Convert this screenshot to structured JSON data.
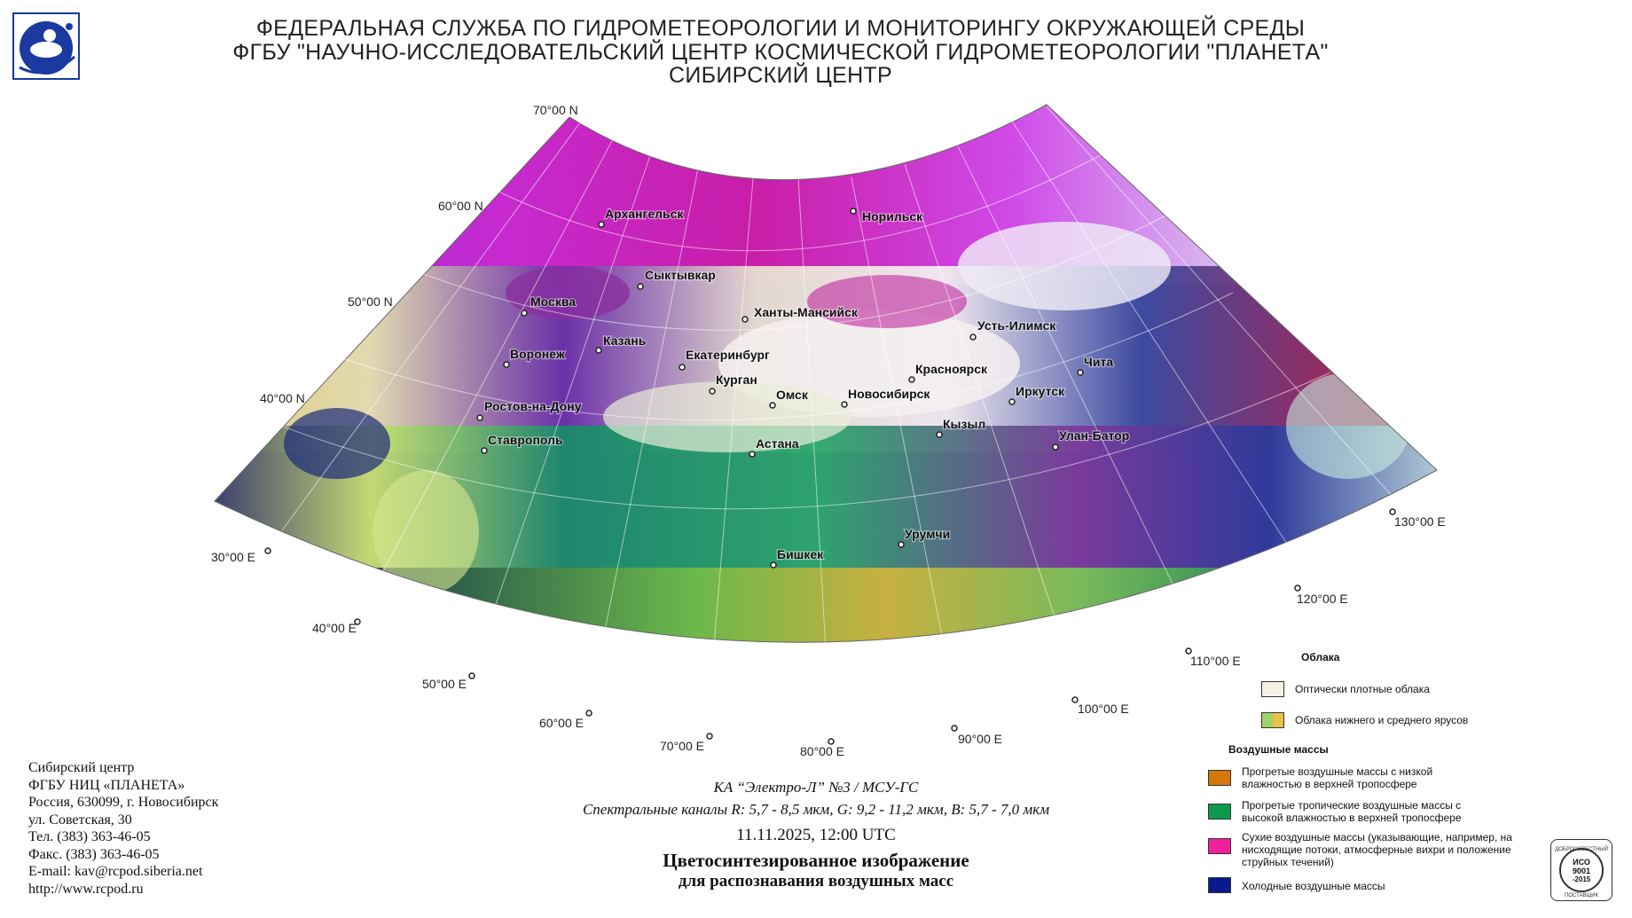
{
  "header": {
    "line1": "ФЕДЕРАЛЬНАЯ СЛУЖБА ПО ГИДРОМЕТЕОРОЛОГИИ И МОНИТОРИНГУ ОКРУЖАЮЩЕЙ СРЕДЫ",
    "line2": "ФГБУ \"НАУЧНО-ИССЛЕДОВАТЕЛЬСКИЙ ЦЕНТР КОСМИЧЕСКОЙ ГИДРОМЕТЕОРОЛОГИИ \"ПЛАНЕТА\"",
    "line3": "СИБИРСКИЙ ЦЕНТР"
  },
  "map": {
    "latitudes": [
      "70°00 N",
      "60°00 N",
      "50°00 N",
      "40°00 N"
    ],
    "longitudes": [
      "30°00 E",
      "40°00 E",
      "50°00 E",
      "60°00 E",
      "70°00 E",
      "80°00 E",
      "90°00 E",
      "100°00 E",
      "110°00 E",
      "120°00 E",
      "130°00 E"
    ],
    "cities": [
      "Архангельск",
      "Норильск",
      "Сыктывкар",
      "Москва",
      "Ханты-Мансийск",
      "Казань",
      "Усть-Илимск",
      "Воронеж",
      "Екатеринбург",
      "Чита",
      "Красноярск",
      "Курган",
      "Омск",
      "Новосибирск",
      "Иркутск",
      "Ростов-на-Дону",
      "Кызыл",
      "Улан-Батор",
      "Ставрополь",
      "Астана",
      "Урумчи",
      "Бишкек"
    ]
  },
  "caption": {
    "satellite": "КА “Электро-Л” №3 / МСУ-ГС",
    "channels": "Спектральные каналы R: 5,7 - 8,5 мкм, G: 9,2 - 11,2 мкм, B: 5,7 - 7,0 мкм",
    "datetime": "11.11.2025, 12:00 UTC",
    "title1": "Цветосинтезированное изображение",
    "title2": "для распознавания воздушных масс"
  },
  "contacts": [
    "Сибирский центр",
    "ФГБУ НИЦ «ПЛАНЕТА»",
    "Россия, 630099, г. Новосибирск",
    "ул. Советская, 30",
    "Тел. (383) 363-46-05",
    "Факс. (383) 363-46-05",
    "E-mail: kav@rcpod.siberia.net",
    "http://www.rcpod.ru"
  ],
  "legend": {
    "clouds_title": "Облака",
    "clouds": [
      {
        "label": "Оптически плотные облака",
        "color": "#f3f0e6"
      },
      {
        "label": "Облака нижнего и среднего ярусов",
        "colors": [
          "#9ed36a",
          "#e8c04a"
        ]
      }
    ],
    "air_title": "Воздушные массы",
    "air": [
      {
        "label": "Прогретые воздушные массы с низкой влажностью в верхней тропосфере",
        "color": "#d4780c"
      },
      {
        "label": "Прогретые тропичеcкие воздушные массы с высокой влажностью в верхней тропосфере",
        "color": "#0e9a4e"
      },
      {
        "label": "Сухие воздушные массы (указывающие, например, на нисходящие потоки, атмосферные вихри и положение струйных течений)",
        "color": "#f0209a"
      },
      {
        "label": "Холодные воздушные массы",
        "color": "#0a1a8c"
      }
    ]
  },
  "cert": {
    "line1": "ДОБРОСОВЕСТНЫЙ",
    "line2": "ИСО",
    "line3": "9001",
    "line4": "-2015",
    "line5": "ПОСТАВЩИК"
  },
  "colors": {
    "dry": "#d020c8",
    "tropical": "#1a9a5a",
    "cold": "#1a1a8a",
    "warm": "#b84a20",
    "cloud": "#f2eee8"
  }
}
